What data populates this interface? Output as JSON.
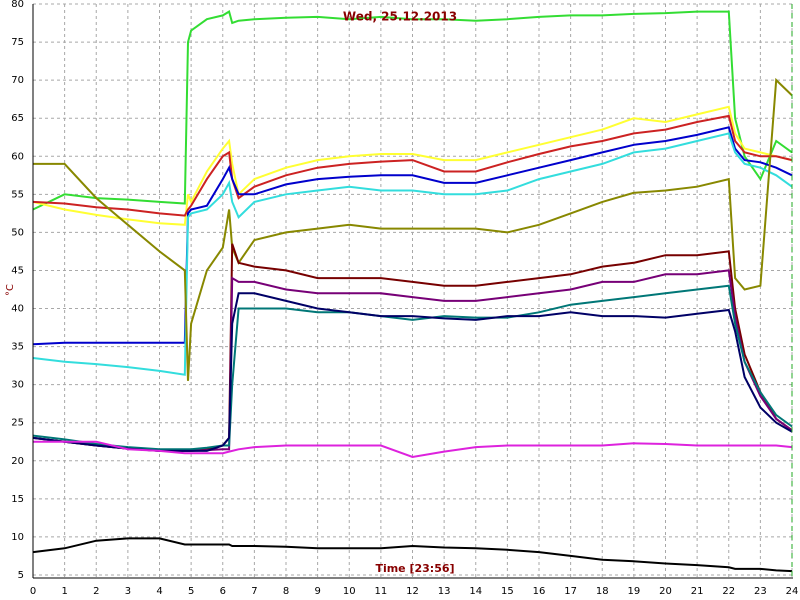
{
  "chart_data": {
    "type": "line",
    "title": "Wed, 25.12.2013",
    "x_label": "Time [23:56]",
    "y_label": "°C",
    "x": [
      0,
      1,
      2,
      3,
      4,
      4.8,
      4.9,
      5,
      5.5,
      6,
      6.2,
      6.3,
      6.5,
      7,
      8,
      9,
      10,
      11,
      12,
      13,
      14,
      15,
      16,
      17,
      18,
      19,
      20,
      21,
      22,
      22.2,
      22.5,
      23,
      23.5,
      24
    ],
    "series": [
      {
        "color": "#33dd33",
        "values": [
          53,
          55,
          54.5,
          54.3,
          54,
          53.8,
          75,
          76.5,
          78,
          78.5,
          79,
          77.5,
          77.8,
          78,
          78.2,
          78.3,
          78,
          78.3,
          78,
          78,
          77.8,
          78,
          78.3,
          78.5,
          78.5,
          78.7,
          78.8,
          79,
          79,
          65,
          60,
          57,
          62,
          60.5
        ]
      },
      {
        "color": "#ffff33",
        "values": [
          54,
          53,
          52.3,
          51.7,
          51.2,
          51,
          55,
          54,
          58,
          61,
          62,
          59,
          55,
          57,
          58.5,
          59.5,
          60,
          60.3,
          60.3,
          59.5,
          59.5,
          60.5,
          61.5,
          62.5,
          63.5,
          65,
          64.5,
          65.5,
          66.5,
          63,
          61,
          60.5,
          60,
          59.5
        ]
      },
      {
        "color": "#cc2222",
        "values": [
          54,
          53.8,
          53.3,
          53,
          52.5,
          52.2,
          53,
          53.5,
          57,
          60,
          60.5,
          57,
          54.5,
          56,
          57.5,
          58.5,
          59,
          59.3,
          59.5,
          58,
          58,
          59.2,
          60.3,
          61.3,
          62,
          63,
          63.5,
          64.5,
          65.3,
          62,
          60.5,
          60,
          60,
          59.5
        ]
      },
      {
        "color": "#0000cc",
        "values": [
          35.3,
          35.5,
          35.5,
          35.5,
          35.5,
          35.5,
          52.5,
          53,
          53.5,
          57,
          58.5,
          57,
          55,
          55,
          56.3,
          57,
          57.3,
          57.5,
          57.5,
          56.5,
          56.5,
          57.5,
          58.5,
          59.5,
          60.5,
          61.5,
          62,
          62.8,
          63.8,
          61,
          59.5,
          59.2,
          58.5,
          57.5
        ]
      },
      {
        "color": "#33dddd",
        "values": [
          33.5,
          33,
          32.7,
          32.3,
          31.8,
          31.3,
          52,
          52.5,
          53,
          55,
          56.5,
          54,
          52,
          54,
          55,
          55.5,
          56,
          55.5,
          55.5,
          55,
          55,
          55.5,
          57,
          58,
          59,
          60.5,
          61,
          62,
          63,
          60.5,
          59,
          58.5,
          57.5,
          56
        ]
      },
      {
        "color": "#888800",
        "values": [
          59,
          59,
          54.5,
          51,
          47.5,
          45,
          30.5,
          38,
          45,
          48,
          53,
          48,
          46,
          49,
          50,
          50.5,
          51,
          50.5,
          50.5,
          50.5,
          50.5,
          50,
          51,
          52.5,
          54,
          55.2,
          55.5,
          56,
          57,
          44,
          42.5,
          43,
          70,
          68
        ]
      },
      {
        "color": "#770000",
        "values": [
          23,
          22.5,
          22,
          21.6,
          21.3,
          21.3,
          21.3,
          21.3,
          21.5,
          22,
          23,
          48.5,
          46,
          45.5,
          45,
          44,
          44,
          44,
          43.5,
          43,
          43,
          43.5,
          44,
          44.5,
          45.5,
          46,
          47,
          47,
          47.5,
          40,
          34,
          29,
          25.5,
          24
        ]
      },
      {
        "color": "#770077",
        "values": [
          23,
          22.5,
          22,
          21.6,
          21.3,
          21.3,
          21.3,
          21.3,
          21.4,
          21.5,
          21.5,
          44,
          43.5,
          43.5,
          42.5,
          42,
          42,
          42,
          41.5,
          41,
          41,
          41.5,
          42,
          42.5,
          43.5,
          43.5,
          44.5,
          44.5,
          45,
          39,
          33,
          28.5,
          25.5,
          24
        ]
      },
      {
        "color": "#007777",
        "values": [
          23.3,
          22.8,
          22.2,
          21.8,
          21.5,
          21.5,
          21.5,
          21.5,
          21.7,
          22,
          22,
          30,
          40,
          40,
          40,
          39.5,
          39.5,
          39,
          38.5,
          39,
          38.8,
          38.8,
          39.5,
          40.5,
          41,
          41.5,
          42,
          42.5,
          43,
          38,
          33,
          29,
          26,
          24.5
        ]
      },
      {
        "color": "#000066",
        "values": [
          23,
          22.5,
          22,
          21.6,
          21.3,
          21.3,
          21.3,
          21.3,
          21.3,
          22,
          23,
          38,
          42,
          42,
          41,
          40,
          39.5,
          39,
          39,
          38.7,
          38.5,
          39,
          39,
          39.5,
          39,
          39,
          38.8,
          39.3,
          39.8,
          37,
          31,
          27,
          25,
          23.8
        ]
      },
      {
        "color": "#dd22dd",
        "values": [
          22.5,
          22.5,
          22.5,
          21.5,
          21.3,
          21,
          21,
          21,
          21,
          21,
          21.2,
          21.3,
          21.5,
          21.8,
          22,
          22,
          22,
          22,
          20.5,
          21.2,
          21.8,
          22,
          22,
          22,
          22,
          22.3,
          22.2,
          22,
          22,
          22,
          22,
          22,
          22,
          21.8
        ]
      },
      {
        "color": "#000000",
        "values": [
          8,
          8.5,
          9.5,
          9.8,
          9.8,
          9,
          9,
          9,
          9,
          9,
          9,
          8.8,
          8.8,
          8.8,
          8.7,
          8.5,
          8.5,
          8.5,
          8.8,
          8.6,
          8.5,
          8.3,
          8,
          7.5,
          7,
          6.8,
          6.5,
          6.3,
          6,
          5.8,
          5.8,
          5.8,
          5.6,
          5.5
        ]
      }
    ],
    "xlim": [
      0,
      24
    ],
    "ylim": [
      4.6,
      80
    ],
    "xticks": [
      0,
      1,
      2,
      3,
      4,
      5,
      6,
      7,
      8,
      9,
      10,
      11,
      12,
      13,
      14,
      15,
      16,
      17,
      18,
      19,
      20,
      21,
      22,
      23,
      24
    ],
    "yticks": [
      5,
      10,
      15,
      20,
      25,
      30,
      35,
      40,
      45,
      50,
      55,
      60,
      65,
      70,
      75,
      80
    ],
    "grid": true
  }
}
